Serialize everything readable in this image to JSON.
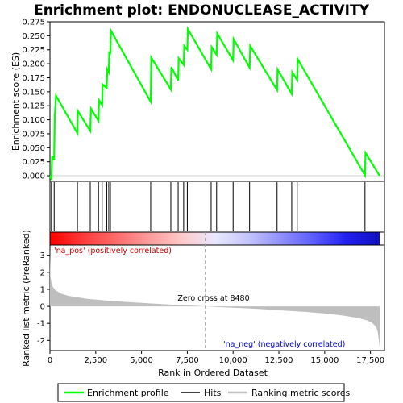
{
  "chart_data": {
    "type": "line",
    "title": "Enrichment plot: ENDONUCLEASE_ACTIVITY",
    "es_panel": {
      "ylabel": "Enrichment score (ES)",
      "ylim": [
        -0.01,
        0.275
      ],
      "yticks": [
        "0.000",
        "0.025",
        "0.050",
        "0.075",
        "0.100",
        "0.125",
        "0.150",
        "0.175",
        "0.200",
        "0.225",
        "0.250",
        "0.275"
      ],
      "series_name": "Enrichment profile",
      "color": "#00ff00",
      "x": [
        0,
        80,
        120,
        230,
        260,
        330,
        1500,
        1520,
        2200,
        2240,
        2650,
        2680,
        2850,
        2880,
        3100,
        3130,
        3210,
        3240,
        3300,
        3330,
        5500,
        5530,
        6600,
        6630,
        7000,
        7030,
        7300,
        7330,
        7500,
        7530,
        8800,
        8830,
        9100,
        9130,
        10000,
        10030,
        10900,
        10930,
        12400,
        12430,
        13200,
        13230,
        13500,
        13530,
        17200,
        17230,
        18000
      ],
      "y": [
        0.0,
        -0.007,
        0.035,
        0.028,
        0.105,
        0.143,
        0.076,
        0.116,
        0.08,
        0.12,
        0.098,
        0.135,
        0.126,
        0.163,
        0.157,
        0.19,
        0.185,
        0.222,
        0.217,
        0.259,
        0.132,
        0.211,
        0.154,
        0.194,
        0.17,
        0.21,
        0.198,
        0.232,
        0.225,
        0.262,
        0.19,
        0.23,
        0.216,
        0.254,
        0.206,
        0.244,
        0.193,
        0.232,
        0.153,
        0.19,
        0.146,
        0.185,
        0.171,
        0.208,
        0.001,
        0.041,
        0.0
      ]
    },
    "hits": [
      80,
      230,
      330,
      1500,
      2200,
      2650,
      2850,
      3100,
      3210,
      3300,
      5500,
      6600,
      7000,
      7300,
      7500,
      8800,
      9100,
      10000,
      10900,
      12400,
      13200,
      13500,
      17200
    ],
    "metric_panel": {
      "ylabel": "Ranked list metric (PreRanked)",
      "ylim": [
        -2.6,
        3.6
      ],
      "yticks": [
        "-2",
        "-1",
        "0",
        "1",
        "2",
        "3"
      ],
      "xlabel": "Rank in Ordered Dataset",
      "xlim": [
        0,
        18000
      ],
      "xticks": [
        "0",
        "2,500",
        "5,000",
        "7,500",
        "10,000",
        "12,500",
        "15,000",
        "17,500"
      ],
      "zero_cross": 8480,
      "zero_cross_label": "Zero cross at 8480",
      "pos_label": "'na_pos' (positively correlated)",
      "neg_label": "'na_neg' (negatively correlated)",
      "curve_x": [
        0,
        30,
        80,
        150,
        300,
        600,
        1000,
        2000,
        3000,
        4000,
        5000,
        6000,
        7000,
        8000,
        8480,
        9000,
        10000,
        11000,
        12000,
        13000,
        14000,
        15000,
        16000,
        16800,
        17300,
        17600,
        17800,
        17900,
        17960,
        18000
      ],
      "curve_y": [
        3.3,
        1.7,
        1.4,
        1.15,
        0.95,
        0.75,
        0.62,
        0.45,
        0.35,
        0.27,
        0.2,
        0.14,
        0.08,
        0.03,
        0.0,
        -0.03,
        -0.08,
        -0.13,
        -0.19,
        -0.26,
        -0.33,
        -0.42,
        -0.54,
        -0.68,
        -0.82,
        -0.98,
        -1.2,
        -1.5,
        -2.0,
        -2.4
      ]
    },
    "colorbar_stops": [
      "#ff0000",
      "#ff3a3a",
      "#ff6b6b",
      "#ff9b9b",
      "#ffc8c8",
      "#e8e8ff",
      "#c4c4ff",
      "#9090ff",
      "#5c5cff",
      "#2020ee",
      "#1010c0"
    ],
    "legend": [
      {
        "label": "Enrichment profile",
        "color": "#00ff00"
      },
      {
        "label": "Hits",
        "color": "#000000"
      },
      {
        "label": "Ranking metric scores",
        "color": "#bebebe"
      }
    ]
  }
}
